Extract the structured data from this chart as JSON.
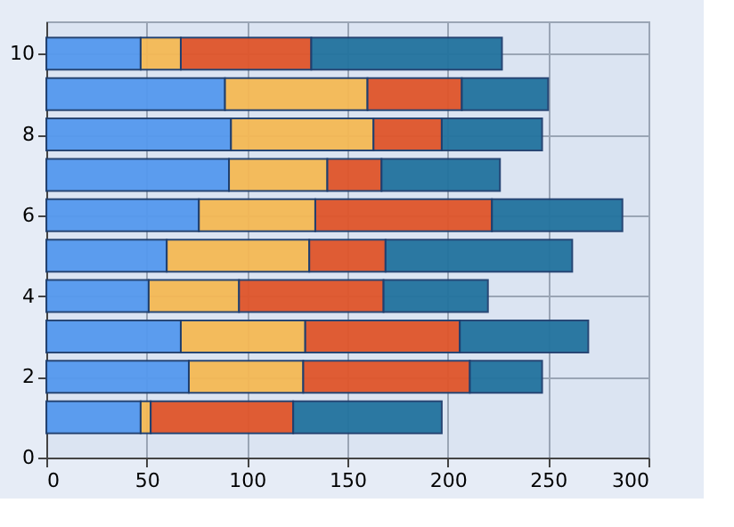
{
  "chart_data": {
    "type": "bar",
    "orientation": "horizontal",
    "stacked": true,
    "x": [
      1,
      2,
      3,
      4,
      5,
      6,
      7,
      8,
      9,
      10
    ],
    "series": [
      {
        "color": "#5599ee",
        "values": [
          47,
          71,
          67,
          51,
          60,
          76,
          91,
          92,
          89,
          47
        ]
      },
      {
        "color": "#f5b955",
        "values": [
          5,
          57,
          62,
          45,
          71,
          58,
          49,
          71,
          71,
          20
        ]
      },
      {
        "color": "#e0552a",
        "values": [
          71,
          83,
          77,
          72,
          38,
          88,
          27,
          34,
          47,
          65
        ]
      },
      {
        "color": "#22739e",
        "values": [
          74,
          36,
          64,
          52,
          93,
          65,
          59,
          50,
          43,
          95
        ]
      }
    ],
    "xlim": [
      0,
      300
    ],
    "xticks": [
      0,
      50,
      100,
      150,
      200,
      250,
      300
    ],
    "ylim": [
      0,
      10.8
    ],
    "yticks": [
      0,
      2,
      4,
      6,
      8,
      10
    ],
    "grid": true,
    "legend": false
  }
}
